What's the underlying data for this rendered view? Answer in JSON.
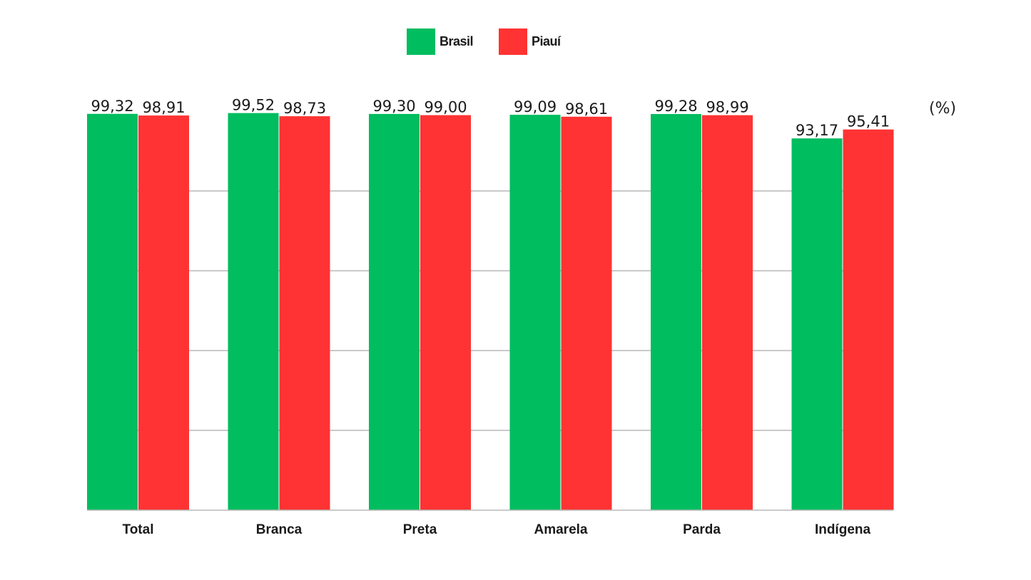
{
  "chart_data": {
    "type": "bar",
    "categories": [
      "Total",
      "Branca",
      "Preta",
      "Amarela",
      "Parda",
      "Indígena"
    ],
    "series": [
      {
        "name": "Brasil",
        "color": "#00bd5f",
        "values": [
          99.32,
          99.52,
          99.3,
          99.09,
          99.28,
          93.17
        ],
        "labels": [
          "99,32",
          "99,52",
          "99,30",
          "99,09",
          "99,28",
          "93,17"
        ]
      },
      {
        "name": "Piauí",
        "color": "#ff3333",
        "values": [
          98.91,
          98.73,
          99.0,
          98.61,
          98.99,
          95.41
        ],
        "labels": [
          "98,91",
          "98,73",
          "99,00",
          "98,61",
          "98,99",
          "95,41"
        ]
      }
    ],
    "unit_label": "(%)",
    "ylim": [
      0,
      100
    ],
    "grid": true,
    "legend_position": "top-center"
  }
}
